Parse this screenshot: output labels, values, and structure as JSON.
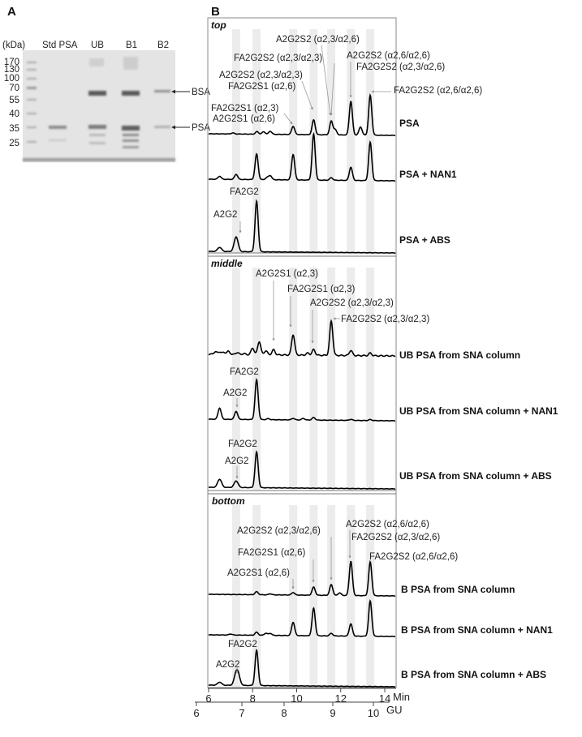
{
  "panel_a": {
    "label": "A",
    "unit": "(kDa)",
    "lanes": [
      "Std PSA",
      "UB",
      "B1",
      "B2"
    ],
    "markers": [
      "170",
      "130",
      "100",
      "70",
      "55",
      "40",
      "35",
      "25"
    ],
    "band_labels": [
      "BSA",
      "PSA"
    ]
  },
  "chart_data": {
    "type": "line",
    "panel_label": "B",
    "x_axis": {
      "label": "Min",
      "range": [
        6,
        14
      ],
      "ticks": [
        "6",
        "8",
        "10",
        "12",
        "14"
      ]
    },
    "x2_axis": {
      "label": "GU",
      "ticks": [
        "6",
        "7",
        "8",
        "9",
        "10"
      ]
    },
    "shaded_bands_min": [
      7.25,
      8.18,
      9.84,
      10.77,
      11.57,
      12.46,
      13.34
    ],
    "intensity_units": "relative (0-100)",
    "panels": [
      {
        "name": "top",
        "traces": [
          {
            "name": "PSA",
            "peaks": [
              [
                7.1,
                2
              ],
              [
                8.2,
                5
              ],
              [
                8.5,
                5
              ],
              [
                8.8,
                6
              ],
              [
                9.84,
                16
              ],
              [
                10.77,
                29
              ],
              [
                11.57,
                27
              ],
              [
                11.75,
                10
              ],
              [
                12.46,
                66
              ],
              [
                12.9,
                16
              ],
              [
                13.34,
                78
              ]
            ]
          },
          {
            "name": "PSA + NAN1",
            "peaks": [
              [
                6.5,
                6
              ],
              [
                7.25,
                10
              ],
              [
                8.18,
                50
              ],
              [
                8.65,
                4
              ],
              [
                8.8,
                8
              ],
              [
                9.84,
                50
              ],
              [
                10.77,
                90
              ],
              [
                11.57,
                5
              ],
              [
                12.46,
                26
              ],
              [
                13.34,
                75
              ]
            ]
          },
          {
            "name": "PSA + ABS",
            "peaks": [
              [
                6.5,
                8
              ],
              [
                7.25,
                29
              ],
              [
                8.18,
                99
              ]
            ]
          }
        ],
        "annotations": [
          "A2G2S2 (α2,3/α2,6)",
          "FA2G2S2 (α2,3/α2,3)",
          "A2G2S2 (α2,3/α2,3)",
          "FA2G2S1 (α2,6)",
          "FA2G2S1 (α2,3)",
          "A2G2S1 (α2,6)",
          "A2G2S2 (α2,6/α2,6)",
          "FA2G2S2 (α2,3/α2,6)",
          "FA2G2S2 (α2,6/α2,6)",
          "FA2G2",
          "A2G2"
        ]
      },
      {
        "name": "middle",
        "traces": [
          {
            "name": "UB PSA from SNA column",
            "peaks": [
              [
                6.3,
                5
              ],
              [
                6.5,
                5
              ],
              [
                6.7,
                4
              ],
              [
                6.9,
                6
              ],
              [
                7.3,
                4
              ],
              [
                7.6,
                2
              ],
              [
                8.0,
                13
              ],
              [
                8.3,
                26
              ],
              [
                8.6,
                8
              ],
              [
                8.95,
                10
              ],
              [
                9.84,
                40
              ],
              [
                10.5,
                4
              ],
              [
                10.77,
                11
              ],
              [
                11.57,
                67
              ],
              [
                12.46,
                10
              ],
              [
                13.34,
                5
              ]
            ]
          },
          {
            "name": "UB PSA from SNA column + NAN1",
            "peaks": [
              [
                6.5,
                22
              ],
              [
                7.25,
                16
              ],
              [
                8.18,
                78
              ],
              [
                8.7,
                2
              ],
              [
                9.84,
                3
              ],
              [
                10.3,
                3
              ],
              [
                10.77,
                5
              ],
              [
                12.46,
                2
              ],
              [
                13.34,
                2
              ]
            ]
          },
          {
            "name": "UB PSA from SNA column + ABS",
            "peaks": [
              [
                6.5,
                16
              ],
              [
                7.25,
                13
              ],
              [
                8.18,
                70
              ]
            ]
          }
        ],
        "annotations": [
          "A2G2S1 (α2,3)",
          "FA2G2S1 (α2,3)",
          "A2G2S2 (α2,3/α2,3)",
          "FA2G2S2 (α2,3/α2,3)",
          "FA2G2",
          "A2G2",
          "FA2G2",
          "A2G2"
        ]
      },
      {
        "name": "bottom",
        "traces": [
          {
            "name": "B PSA from SNA column",
            "peaks": [
              [
                8.18,
                6
              ],
              [
                8.8,
                2
              ],
              [
                9.84,
                5
              ],
              [
                10.77,
                16
              ],
              [
                11.57,
                21
              ],
              [
                11.95,
                5
              ],
              [
                12.46,
                67
              ],
              [
                13.34,
                66
              ]
            ]
          },
          {
            "name": "B PSA from SNA column + NAN1",
            "peaks": [
              [
                7.0,
                2
              ],
              [
                8.18,
                6
              ],
              [
                8.6,
                4
              ],
              [
                8.8,
                4
              ],
              [
                9.84,
                26
              ],
              [
                10.77,
                54
              ],
              [
                11.57,
                5
              ],
              [
                12.46,
                24
              ],
              [
                13.34,
                69
              ]
            ]
          },
          {
            "name": "B PSA from SNA column + ABS",
            "peaks": [
              [
                6.5,
                6
              ],
              [
                7.25,
                21
              ],
              [
                7.35,
                15
              ],
              [
                8.18,
                69
              ]
            ]
          }
        ],
        "annotations": [
          "A2G2S2 (α2,3/α2,6)",
          "A2G2S2 (α2,6/α2,6)",
          "FA2G2S2 (α2,3/α2,6)",
          "FA2G2S1 (α2,6)",
          "FA2G2S2 (α2,6/α2,6)",
          "A2G2S1 (α2,6)",
          "FA2G2",
          "A2G2"
        ]
      }
    ]
  }
}
